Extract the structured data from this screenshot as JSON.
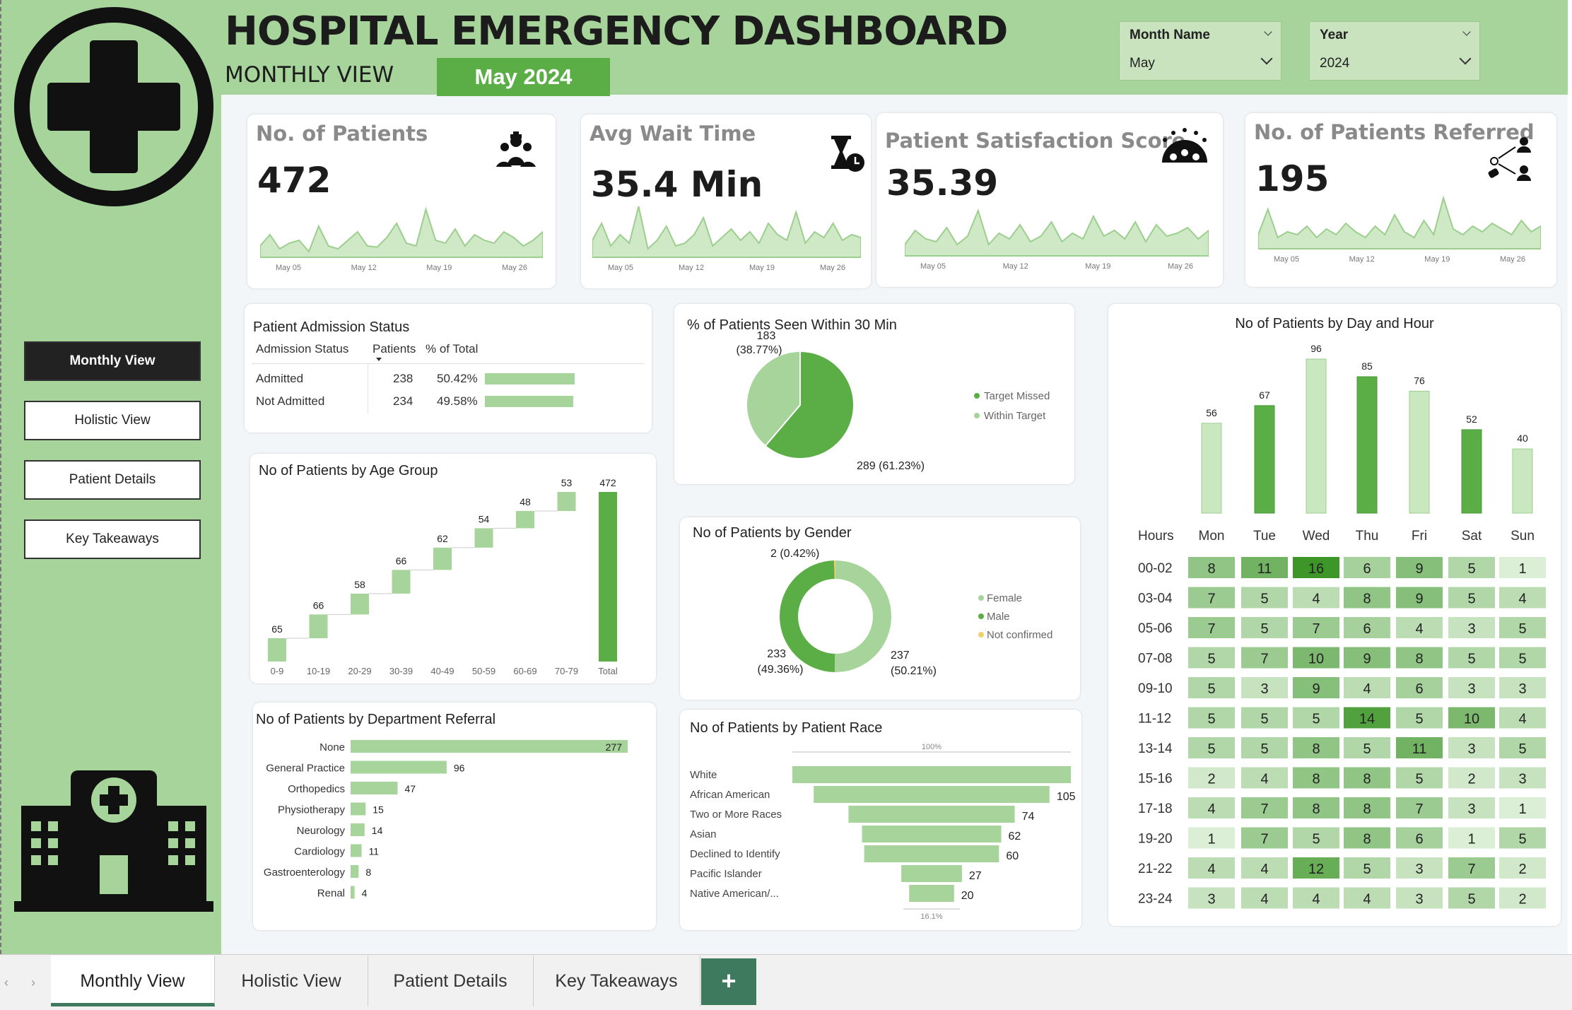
{
  "header": {
    "title": "HOSPITAL EMERGENCY DASHBOARD",
    "subtitle": "MONTHLY VIEW",
    "current_period": "May 2024"
  },
  "slicers": {
    "month_label": "Month Name",
    "month_value": "May",
    "year_label": "Year",
    "year_value": "2024"
  },
  "nav": [
    "Monthly View",
    "Holistic View",
    "Patient Details",
    "Key Takeaways"
  ],
  "kpis": [
    {
      "title": "No. of Patients",
      "value": "472",
      "icon": "patients-group-icon",
      "ticks": [
        "May 05",
        "May 12",
        "May 19",
        "May 26"
      ]
    },
    {
      "title": "Avg Wait Time",
      "value": "35.4 Min",
      "icon": "hourglass-clock-icon",
      "ticks": [
        "May 05",
        "May 12",
        "May 19",
        "May 26"
      ]
    },
    {
      "title": "Patient Satisfaction Score",
      "value": "35.39",
      "icon": "rating-stars-icon",
      "ticks": [
        "May 05",
        "May 12",
        "May 19",
        "May 26"
      ]
    },
    {
      "title": "No. of Patients Referred",
      "value": "195",
      "icon": "referral-network-icon",
      "ticks": [
        "May 05",
        "May 12",
        "May 19",
        "May 26"
      ]
    }
  ],
  "admission": {
    "title": "Patient Admission Status",
    "headers": [
      "Admission Status",
      "Patients",
      "% of Total"
    ],
    "rows": [
      {
        "status": "Admitted",
        "patients": "238",
        "pct": "50.42%",
        "fraction": 0.5042
      },
      {
        "status": "Not Admitted",
        "patients": "234",
        "pct": "49.58%",
        "fraction": 0.4958
      }
    ]
  },
  "colors": {
    "dark_green": "#5aae45",
    "light_green": "#a6d49a",
    "pale_green": "#c9e8c0",
    "header_green": "#a6d49a",
    "accent_yellow": "#f2d16b"
  },
  "chart_data": [
    {
      "id": "seen_within_30",
      "type": "pie",
      "title": "% of Patients Seen Within 30 Min",
      "labels": [
        "Target Missed",
        "Within Target"
      ],
      "values": [
        289,
        183
      ],
      "value_labels": [
        "289 (61.23%)",
        "183\n(38.77%)"
      ],
      "legend": [
        "Target Missed",
        "Within Target"
      ],
      "legend_position": "right"
    },
    {
      "id": "day_totals",
      "type": "bar",
      "title": "No of Patients by Day and Hour",
      "categories": [
        "Mon",
        "Tue",
        "Wed",
        "Thu",
        "Fri",
        "Sat",
        "Sun"
      ],
      "values": [
        56,
        67,
        96,
        85,
        76,
        52,
        40
      ]
    },
    {
      "id": "age_group",
      "type": "bar",
      "subtype": "waterfall",
      "title": "No of Patients by Age Group",
      "categories": [
        "0-9",
        "10-19",
        "20-29",
        "30-39",
        "40-49",
        "50-59",
        "60-69",
        "70-79",
        "Total"
      ],
      "values": [
        65,
        66,
        58,
        66,
        62,
        54,
        48,
        53,
        472
      ]
    },
    {
      "id": "gender",
      "type": "pie",
      "subtype": "donut",
      "title": "No of Patients by Gender",
      "labels": [
        "Female",
        "Male",
        "Not confirmed"
      ],
      "values": [
        237,
        233,
        2
      ],
      "value_labels": [
        "237\n(50.21%)",
        "233\n(49.36%)",
        "2 (0.42%)"
      ],
      "legend": [
        "Female",
        "Male",
        "Not confirmed"
      ],
      "legend_position": "right"
    },
    {
      "id": "department",
      "type": "bar",
      "orientation": "horizontal",
      "title": "No of Patients by Department Referral",
      "categories": [
        "None",
        "General Practice",
        "Orthopedics",
        "Physiotherapy",
        "Neurology",
        "Cardiology",
        "Gastroenterology",
        "Renal"
      ],
      "values": [
        277,
        96,
        47,
        15,
        14,
        11,
        8,
        4
      ]
    },
    {
      "id": "race",
      "type": "bar",
      "subtype": "funnel",
      "title": "No of Patients by Patient Race",
      "categories": [
        "White",
        "African American",
        "Two or More Races",
        "Asian",
        "Declined to Identify",
        "Pacific Islander",
        "Native American/..."
      ],
      "values": [
        124,
        105,
        74,
        62,
        60,
        27,
        20
      ],
      "top_label": "100%",
      "bottom_label": "16.1%"
    },
    {
      "id": "day_hour",
      "type": "heatmap",
      "title": "No of Patients by Day and Hour",
      "row_header": "Hours",
      "columns": [
        "Mon",
        "Tue",
        "Wed",
        "Thu",
        "Fri",
        "Sat",
        "Sun"
      ],
      "rows": [
        "00-02",
        "03-04",
        "05-06",
        "07-08",
        "09-10",
        "11-12",
        "13-14",
        "15-16",
        "17-18",
        "19-20",
        "21-22",
        "23-24"
      ],
      "values": [
        [
          8,
          11,
          16,
          6,
          9,
          5,
          1
        ],
        [
          7,
          5,
          4,
          8,
          9,
          5,
          4
        ],
        [
          7,
          5,
          7,
          6,
          4,
          3,
          5
        ],
        [
          5,
          7,
          10,
          9,
          8,
          5,
          5
        ],
        [
          5,
          3,
          9,
          4,
          6,
          3,
          3
        ],
        [
          5,
          5,
          5,
          14,
          5,
          10,
          4
        ],
        [
          5,
          5,
          8,
          5,
          11,
          3,
          5
        ],
        [
          2,
          4,
          8,
          8,
          5,
          2,
          3
        ],
        [
          4,
          7,
          8,
          8,
          7,
          3,
          1
        ],
        [
          1,
          7,
          5,
          8,
          6,
          1,
          5
        ],
        [
          4,
          4,
          12,
          5,
          3,
          7,
          2
        ],
        [
          3,
          4,
          4,
          4,
          3,
          5,
          2
        ]
      ]
    }
  ],
  "sheet_tabs": [
    "Monthly View",
    "Holistic View",
    "Patient Details",
    "Key Takeaways"
  ],
  "add_tab_symbol": "+"
}
